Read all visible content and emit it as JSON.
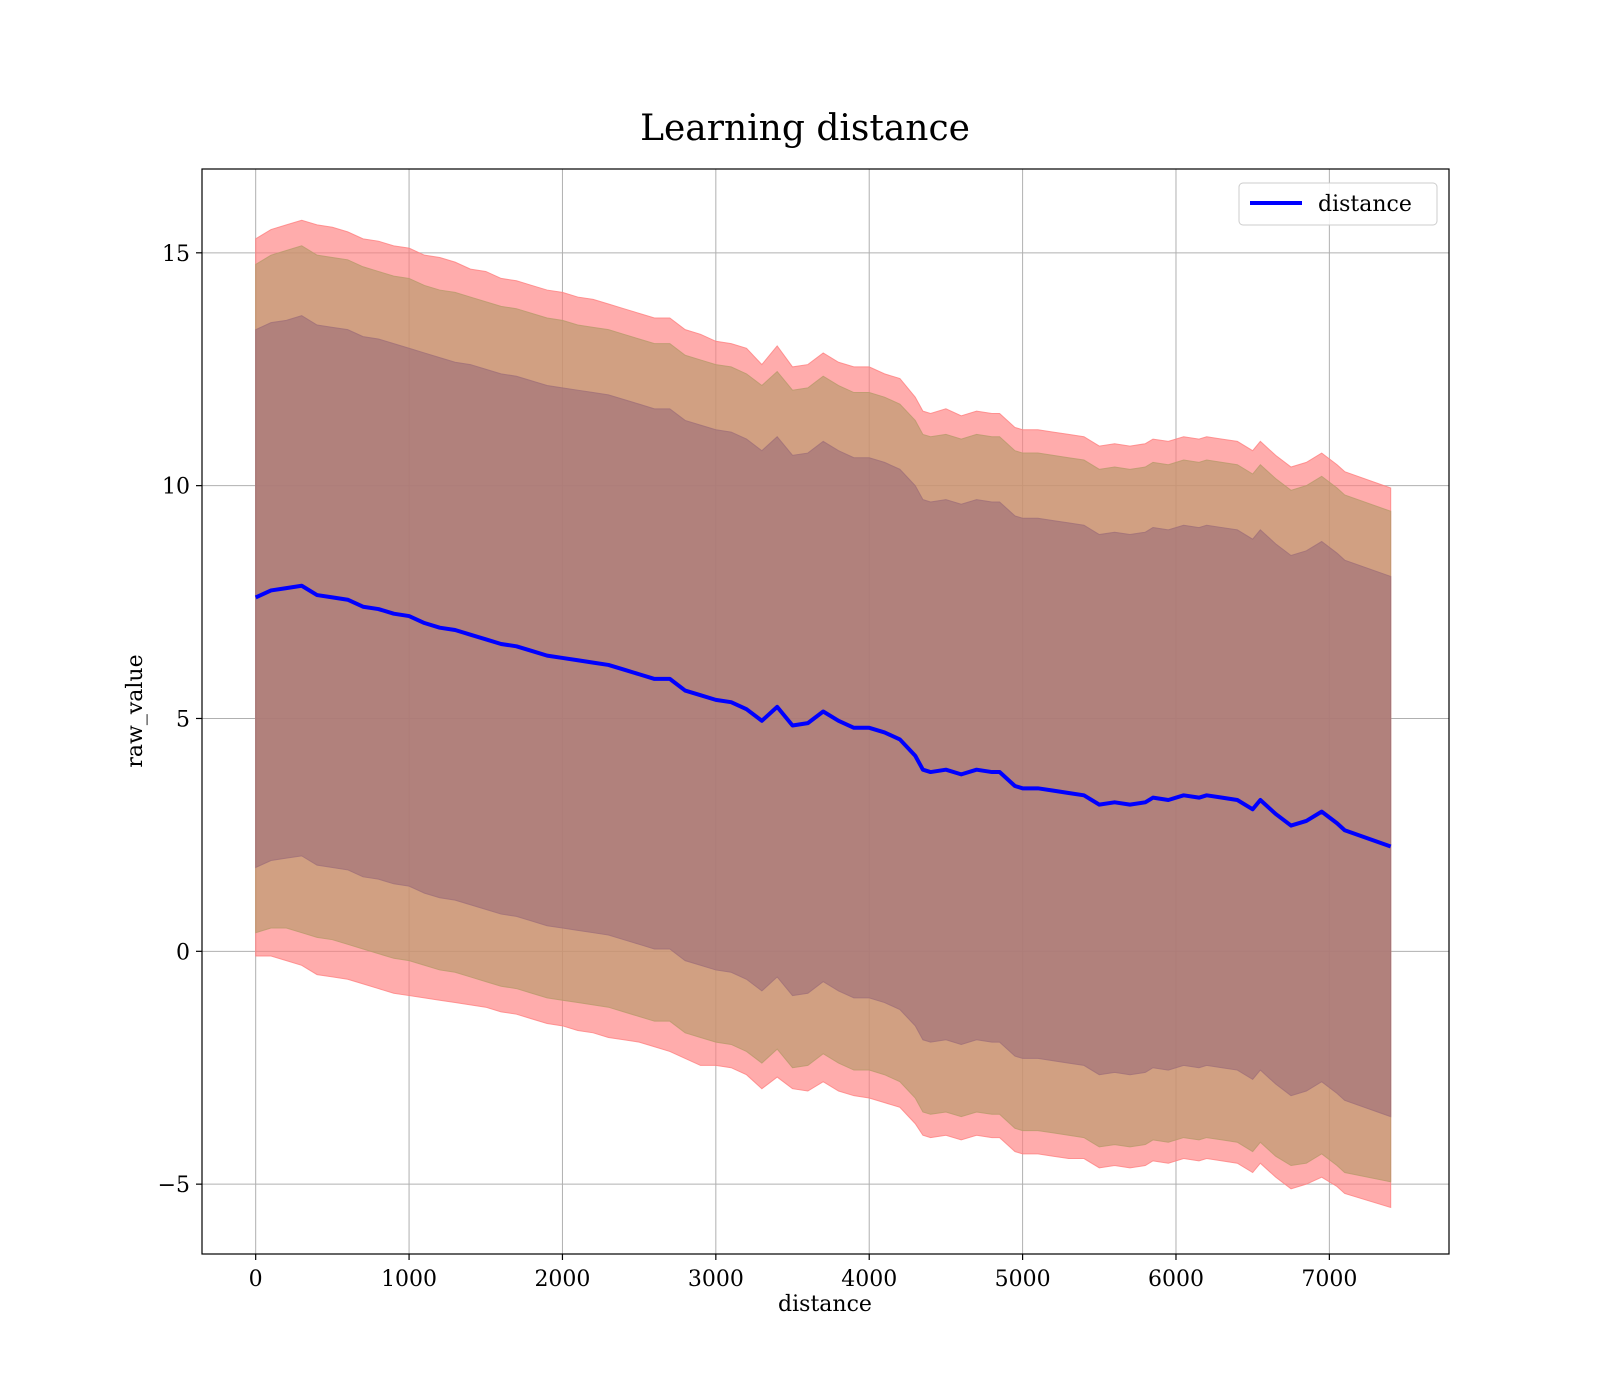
{
  "chart_data": {
    "type": "line",
    "title": "Learning distance",
    "xlabel": "distance",
    "ylabel": "raw_value",
    "xlim": [
      -350,
      7780
    ],
    "ylim": [
      -6.5,
      16.8
    ],
    "xticks": [
      0,
      1000,
      2000,
      3000,
      4000,
      5000,
      6000,
      7000
    ],
    "xtick_labels": [
      "0",
      "1000",
      "2000",
      "3000",
      "4000",
      "5000",
      "6000",
      "7000"
    ],
    "yticks": [
      -5,
      0,
      5,
      10,
      15
    ],
    "ytick_labels": [
      "−5",
      "0",
      "5",
      "10",
      "15"
    ],
    "grid": true,
    "legend_position": "top-right",
    "colors": {
      "line": "#0000ff",
      "band_outer": "#ff7f7f",
      "band_middle": "#b99a6b",
      "band_inner": "#a07079"
    },
    "x": [
      0,
      100,
      200,
      300,
      400,
      500,
      600,
      700,
      800,
      900,
      1000,
      1100,
      1200,
      1300,
      1400,
      1500,
      1600,
      1700,
      1800,
      1900,
      2000,
      2100,
      2200,
      2300,
      2400,
      2500,
      2600,
      2700,
      2800,
      2900,
      3000,
      3100,
      3200,
      3300,
      3400,
      3500,
      3600,
      3700,
      3800,
      3900,
      4000,
      4100,
      4200,
      4300,
      4350,
      4400,
      4500,
      4600,
      4700,
      4800,
      4850,
      4950,
      5000,
      5100,
      5200,
      5300,
      5400,
      5500,
      5600,
      5700,
      5800,
      5850,
      5950,
      6050,
      6150,
      6200,
      6300,
      6400,
      6500,
      6550,
      6650,
      6750,
      6850,
      6950,
      7050,
      7100,
      7400
    ],
    "series": [
      {
        "name": "distance",
        "values": [
          7.6,
          7.75,
          7.8,
          7.85,
          7.65,
          7.6,
          7.55,
          7.4,
          7.35,
          7.25,
          7.2,
          7.05,
          6.95,
          6.9,
          6.8,
          6.7,
          6.6,
          6.55,
          6.45,
          6.35,
          6.3,
          6.25,
          6.2,
          6.15,
          6.05,
          5.95,
          5.85,
          5.85,
          5.6,
          5.5,
          5.4,
          5.35,
          5.2,
          4.95,
          5.25,
          4.85,
          4.9,
          5.15,
          4.95,
          4.8,
          4.8,
          4.7,
          4.55,
          4.2,
          3.9,
          3.85,
          3.9,
          3.8,
          3.9,
          3.85,
          3.85,
          3.55,
          3.5,
          3.5,
          3.45,
          3.4,
          3.35,
          3.15,
          3.2,
          3.15,
          3.2,
          3.3,
          3.25,
          3.35,
          3.3,
          3.35,
          3.3,
          3.25,
          3.05,
          3.25,
          2.95,
          2.7,
          2.8,
          3.0,
          2.75,
          2.6,
          2.25
        ]
      }
    ],
    "bands": [
      {
        "level": "outer",
        "lower": [
          -0.1,
          -0.1,
          -0.2,
          -0.3,
          -0.5,
          -0.55,
          -0.6,
          -0.7,
          -0.8,
          -0.9,
          -0.95,
          -1.0,
          -1.05,
          -1.1,
          -1.15,
          -1.2,
          -1.3,
          -1.35,
          -1.45,
          -1.55,
          -1.6,
          -1.7,
          -1.75,
          -1.85,
          -1.9,
          -1.95,
          -2.05,
          -2.15,
          -2.3,
          -2.45,
          -2.45,
          -2.5,
          -2.65,
          -2.95,
          -2.7,
          -2.95,
          -3.0,
          -2.8,
          -3.0,
          -3.1,
          -3.15,
          -3.25,
          -3.35,
          -3.7,
          -3.95,
          -4.0,
          -3.95,
          -4.05,
          -3.95,
          -4.0,
          -4.0,
          -4.3,
          -4.35,
          -4.35,
          -4.4,
          -4.45,
          -4.45,
          -4.65,
          -4.6,
          -4.65,
          -4.6,
          -4.5,
          -4.55,
          -4.45,
          -4.5,
          -4.45,
          -4.5,
          -4.55,
          -4.75,
          -4.55,
          -4.85,
          -5.1,
          -5.0,
          -4.85,
          -5.05,
          -5.2,
          -5.5
        ],
        "upper": [
          15.3,
          15.5,
          15.6,
          15.7,
          15.6,
          15.55,
          15.45,
          15.3,
          15.25,
          15.15,
          15.1,
          14.95,
          14.9,
          14.8,
          14.65,
          14.6,
          14.45,
          14.4,
          14.3,
          14.2,
          14.15,
          14.05,
          14.0,
          13.9,
          13.8,
          13.7,
          13.6,
          13.6,
          13.35,
          13.25,
          13.1,
          13.05,
          12.95,
          12.6,
          13.0,
          12.55,
          12.6,
          12.85,
          12.65,
          12.55,
          12.55,
          12.4,
          12.3,
          11.9,
          11.6,
          11.55,
          11.65,
          11.5,
          11.6,
          11.55,
          11.55,
          11.25,
          11.2,
          11.2,
          11.15,
          11.1,
          11.05,
          10.85,
          10.9,
          10.85,
          10.9,
          11.0,
          10.95,
          11.05,
          11.0,
          11.05,
          11.0,
          10.95,
          10.75,
          10.95,
          10.65,
          10.4,
          10.5,
          10.7,
          10.45,
          10.3,
          9.95
        ]
      },
      {
        "level": "middle",
        "lower": [
          0.4,
          0.5,
          0.5,
          0.4,
          0.3,
          0.25,
          0.15,
          0.05,
          -0.05,
          -0.15,
          -0.2,
          -0.3,
          -0.4,
          -0.45,
          -0.55,
          -0.65,
          -0.75,
          -0.8,
          -0.9,
          -1.0,
          -1.05,
          -1.1,
          -1.15,
          -1.2,
          -1.3,
          -1.4,
          -1.5,
          -1.5,
          -1.75,
          -1.85,
          -1.95,
          -2.0,
          -2.15,
          -2.4,
          -2.1,
          -2.5,
          -2.45,
          -2.2,
          -2.4,
          -2.55,
          -2.55,
          -2.65,
          -2.8,
          -3.15,
          -3.45,
          -3.5,
          -3.45,
          -3.55,
          -3.45,
          -3.5,
          -3.5,
          -3.8,
          -3.85,
          -3.85,
          -3.9,
          -3.95,
          -4.0,
          -4.2,
          -4.15,
          -4.2,
          -4.15,
          -4.05,
          -4.1,
          -4.0,
          -4.05,
          -4.0,
          -4.05,
          -4.1,
          -4.3,
          -4.1,
          -4.4,
          -4.6,
          -4.55,
          -4.35,
          -4.6,
          -4.75,
          -4.95
        ],
        "upper": [
          14.75,
          14.95,
          15.05,
          15.15,
          14.95,
          14.9,
          14.85,
          14.7,
          14.6,
          14.5,
          14.45,
          14.3,
          14.2,
          14.15,
          14.05,
          13.95,
          13.85,
          13.8,
          13.7,
          13.6,
          13.55,
          13.45,
          13.4,
          13.35,
          13.25,
          13.15,
          13.05,
          13.05,
          12.8,
          12.7,
          12.6,
          12.55,
          12.4,
          12.15,
          12.45,
          12.05,
          12.1,
          12.35,
          12.15,
          12.0,
          12.0,
          11.9,
          11.75,
          11.4,
          11.1,
          11.05,
          11.1,
          11.0,
          11.1,
          11.05,
          11.05,
          10.75,
          10.7,
          10.7,
          10.65,
          10.6,
          10.55,
          10.35,
          10.4,
          10.35,
          10.4,
          10.5,
          10.45,
          10.55,
          10.5,
          10.55,
          10.5,
          10.45,
          10.25,
          10.45,
          10.15,
          9.9,
          10.0,
          10.2,
          9.95,
          9.8,
          9.45
        ]
      },
      {
        "level": "inner",
        "lower": [
          1.8,
          1.95,
          2.0,
          2.05,
          1.85,
          1.8,
          1.75,
          1.6,
          1.55,
          1.45,
          1.4,
          1.25,
          1.15,
          1.1,
          1.0,
          0.9,
          0.8,
          0.75,
          0.65,
          0.55,
          0.5,
          0.45,
          0.4,
          0.35,
          0.25,
          0.15,
          0.05,
          0.05,
          -0.2,
          -0.3,
          -0.4,
          -0.45,
          -0.6,
          -0.85,
          -0.55,
          -0.95,
          -0.9,
          -0.65,
          -0.85,
          -1.0,
          -1.0,
          -1.1,
          -1.25,
          -1.6,
          -1.9,
          -1.95,
          -1.9,
          -2.0,
          -1.9,
          -1.95,
          -1.95,
          -2.25,
          -2.3,
          -2.3,
          -2.35,
          -2.4,
          -2.45,
          -2.65,
          -2.6,
          -2.65,
          -2.6,
          -2.5,
          -2.55,
          -2.45,
          -2.5,
          -2.45,
          -2.5,
          -2.55,
          -2.75,
          -2.55,
          -2.85,
          -3.1,
          -3.0,
          -2.8,
          -3.05,
          -3.2,
          -3.55
        ],
        "upper": [
          13.35,
          13.5,
          13.55,
          13.65,
          13.45,
          13.4,
          13.35,
          13.2,
          13.15,
          13.05,
          12.95,
          12.85,
          12.75,
          12.65,
          12.6,
          12.5,
          12.4,
          12.35,
          12.25,
          12.15,
          12.1,
          12.05,
          12.0,
          11.95,
          11.85,
          11.75,
          11.65,
          11.65,
          11.4,
          11.3,
          11.2,
          11.15,
          11.0,
          10.75,
          11.05,
          10.65,
          10.7,
          10.95,
          10.75,
          10.6,
          10.6,
          10.5,
          10.35,
          10.0,
          9.7,
          9.65,
          9.7,
          9.6,
          9.7,
          9.65,
          9.65,
          9.35,
          9.3,
          9.3,
          9.25,
          9.2,
          9.15,
          8.95,
          9.0,
          8.95,
          9.0,
          9.1,
          9.05,
          9.15,
          9.1,
          9.15,
          9.1,
          9.05,
          8.85,
          9.05,
          8.75,
          8.5,
          8.6,
          8.8,
          8.55,
          8.4,
          8.05
        ]
      }
    ]
  }
}
